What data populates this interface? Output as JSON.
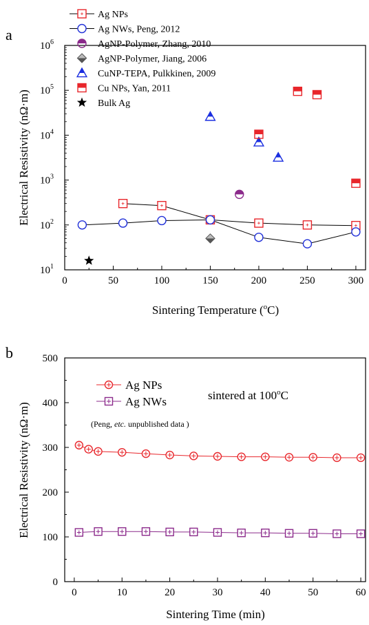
{
  "chart_data": [
    {
      "panel_label": "a",
      "type": "scatter",
      "xlabel_main": "Sintering Temperature (",
      "xlabel_sup": "o",
      "xlabel_tail": "C)",
      "ylabel": "Electrical Resistivity (nΩ·m)",
      "xlim": [
        0,
        310
      ],
      "x_ticks": [
        0,
        50,
        100,
        150,
        200,
        250,
        300
      ],
      "y_scale": "log",
      "ylim": [
        10,
        1000000
      ],
      "y_ticks": [
        {
          "value": 10,
          "base": "10",
          "exp": "1"
        },
        {
          "value": 100,
          "base": "10",
          "exp": "2"
        },
        {
          "value": 1000,
          "base": "10",
          "exp": "3"
        },
        {
          "value": 10000,
          "base": "10",
          "exp": "4"
        },
        {
          "value": 100000,
          "base": "10",
          "exp": "5"
        },
        {
          "value": 1000000,
          "base": "10",
          "exp": "6"
        }
      ],
      "legend_position": "top-left",
      "series": [
        {
          "name": "Ag NPs",
          "marker": "square-open",
          "color": "#e8262b",
          "line": true,
          "x": [
            60,
            100,
            150,
            200,
            250,
            300
          ],
          "y": [
            300,
            270,
            130,
            110,
            100,
            97
          ]
        },
        {
          "name": "Ag NWs, Peng, 2012",
          "marker": "circle-open",
          "color": "#2030d8",
          "line": true,
          "x": [
            18,
            60,
            100,
            150,
            200,
            250,
            300
          ],
          "y": [
            100,
            110,
            125,
            130,
            53,
            38,
            70
          ]
        },
        {
          "name": "AgNP-Polymer, Zhang, 2010",
          "marker": "circle-half",
          "color": "#8b2a8b",
          "line": false,
          "x": [
            180
          ],
          "y": [
            480
          ]
        },
        {
          "name": "AgNP-Polymer, Jiang, 2006",
          "marker": "diamond-half",
          "color": "#555555",
          "line": false,
          "x": [
            150
          ],
          "y": [
            50
          ]
        },
        {
          "name": "CuNP-TEPA, Pulkkinen, 2009",
          "marker": "triangle-half",
          "color": "#1a2ee0",
          "line": false,
          "x": [
            150,
            200,
            220
          ],
          "y": [
            26000,
            7000,
            3200
          ]
        },
        {
          "name": "Cu NPs, Yan, 2011",
          "marker": "square-half",
          "color": "#e8262b",
          "line": false,
          "x": [
            200,
            240,
            260,
            300
          ],
          "y": [
            10500,
            95000,
            80000,
            850
          ]
        },
        {
          "name": "Bulk Ag",
          "marker": "star",
          "color": "#000000",
          "line": false,
          "x": [
            25
          ],
          "y": [
            16
          ]
        }
      ]
    },
    {
      "panel_label": "b",
      "type": "line",
      "xlabel": "Sintering Time (min)",
      "ylabel": "Electrical Resistivity (nΩ·m)",
      "xlim": [
        -2,
        61
      ],
      "x_ticks": [
        0,
        10,
        20,
        30,
        40,
        50,
        60
      ],
      "ylim": [
        0,
        500
      ],
      "y_ticks": [
        0,
        100,
        200,
        300,
        400,
        500
      ],
      "annotation_main": "sintered at 100",
      "annotation_sup": "o",
      "annotation_tail": "C",
      "note_pre": "(Peng, ",
      "note_italic": "etc.",
      "note_post": " unpublished data )",
      "legend_position": "top-left",
      "series": [
        {
          "name": "Ag NPs",
          "marker": "circle-open-cross",
          "color": "#e8262b",
          "x": [
            1,
            3,
            5,
            10,
            15,
            20,
            25,
            30,
            35,
            40,
            45,
            50,
            55,
            60
          ],
          "y": [
            305,
            296,
            291,
            289,
            286,
            283,
            281,
            280,
            279,
            279,
            278,
            278,
            277,
            277
          ]
        },
        {
          "name": "Ag NWs",
          "marker": "square-open-cross",
          "color": "#8b2a8b",
          "x": [
            1,
            5,
            10,
            15,
            20,
            25,
            30,
            35,
            40,
            45,
            50,
            55,
            60
          ],
          "y": [
            110,
            112,
            112,
            112,
            111,
            111,
            110,
            109,
            109,
            108,
            108,
            107,
            107
          ]
        }
      ]
    }
  ]
}
